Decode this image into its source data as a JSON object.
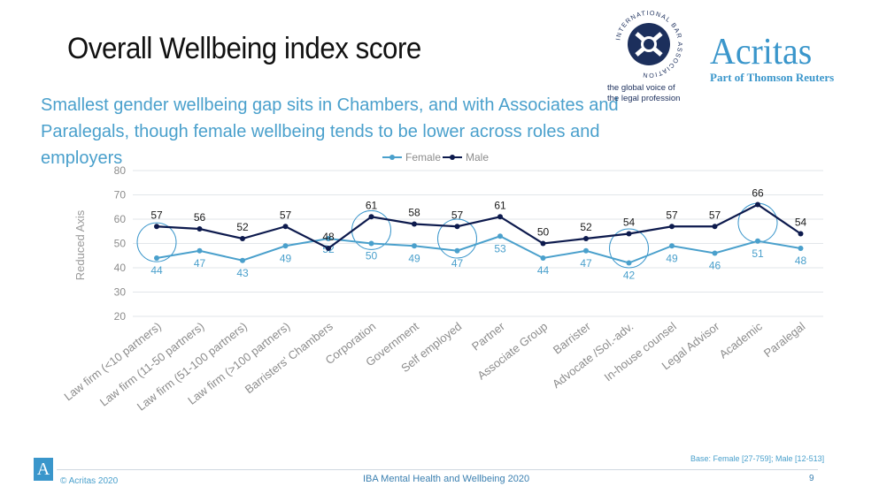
{
  "slide": {
    "title": "Overall Wellbeing index score",
    "subtitle": "Smallest gender wellbeing gap sits in Chambers, and with Associates and Paralegals, though female wellbeing tends to be lower across roles and employers"
  },
  "logos": {
    "iba_ring_text": "INTERNATIONAL BAR ASSOCIATION",
    "iba_tagline_1": "the global voice of",
    "iba_tagline_2": "the legal profession",
    "acritas_name": "Acritas",
    "acritas_sub": "Part of Thomson Reuters"
  },
  "footer": {
    "a_mark": "A",
    "base": "Base: Female [27-759]; Male [12-513]",
    "copyright": "© Acritas 2020",
    "center": "IBA Mental Health and Wellbeing 2020",
    "page": "9"
  },
  "colors": {
    "female": "#4aa0cc",
    "male": "#0d1a4d",
    "accent": "#3a96cb"
  },
  "chart_data": {
    "type": "line",
    "ylabel": "Reduced Axis",
    "xlabel": "",
    "ylim": [
      20,
      80
    ],
    "yticks": [
      20,
      30,
      40,
      50,
      60,
      70,
      80
    ],
    "grid": true,
    "legend": "top-center",
    "categories": [
      "Law firm (<10 partners)",
      "Law firm (11-50 partners)",
      "Law firm (51-100 partners)",
      "Law firm (>100 partners)",
      "Barristers' Chambers",
      "Corporation",
      "Government",
      "Self employed",
      "Partner",
      "Associate Group",
      "Barrister",
      "Advocate /Sol.-adv.",
      "In-house counsel",
      "Legal Advisor",
      "Academic",
      "Paralegal"
    ],
    "series": [
      {
        "name": "Female",
        "values": [
          44,
          47,
          43,
          49,
          52,
          50,
          49,
          47,
          53,
          44,
          47,
          42,
          49,
          46,
          51,
          48
        ]
      },
      {
        "name": "Male",
        "values": [
          57,
          56,
          52,
          57,
          48,
          61,
          58,
          57,
          61,
          50,
          52,
          54,
          57,
          57,
          66,
          54
        ]
      }
    ],
    "highlighted_categories": [
      "Law firm (<10 partners)",
      "Corporation",
      "Self employed",
      "Advocate /Sol.-adv.",
      "Academic"
    ]
  }
}
